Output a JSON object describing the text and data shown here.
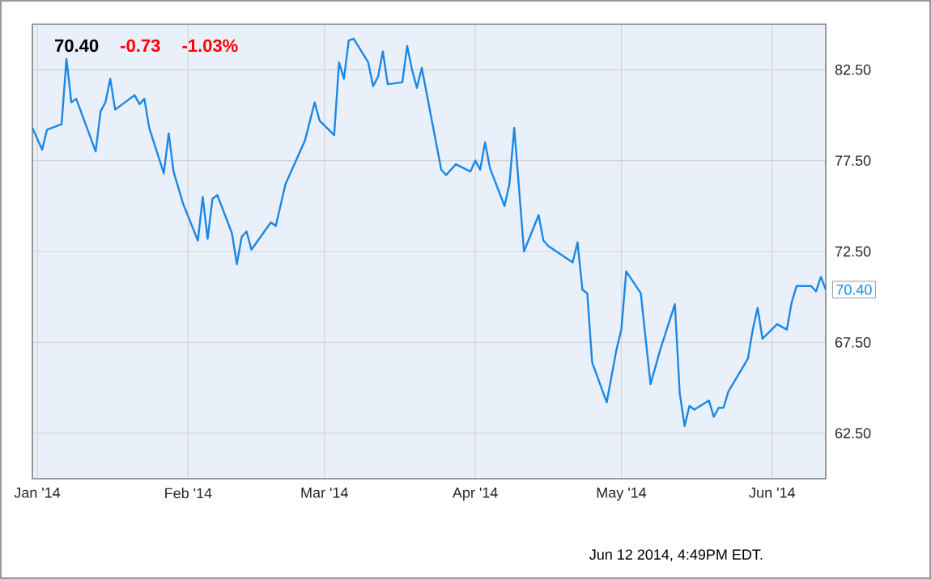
{
  "chart_data": {
    "type": "line",
    "title": "70.40",
    "annotations": [
      "-0.73",
      "-1.03%",
      "Jun 12 2014, 4:49PM EDT.",
      {
        "text": "70.40",
        "x": "2014-06-12",
        "y": 70.4
      }
    ],
    "x": [
      "2013-12-31",
      "2014-01-02",
      "2014-01-03",
      "2014-01-06",
      "2014-01-07",
      "2014-01-08",
      "2014-01-09",
      "2014-01-13",
      "2014-01-14",
      "2014-01-15",
      "2014-01-16",
      "2014-01-17",
      "2014-01-21",
      "2014-01-22",
      "2014-01-23",
      "2014-01-24",
      "2014-01-27",
      "2014-01-28",
      "2014-01-29",
      "2014-01-31",
      "2014-02-03",
      "2014-02-04",
      "2014-02-05",
      "2014-02-06",
      "2014-02-07",
      "2014-02-10",
      "2014-02-11",
      "2014-02-12",
      "2014-02-13",
      "2014-02-14",
      "2014-02-18",
      "2014-02-19",
      "2014-02-21",
      "2014-02-25",
      "2014-02-27",
      "2014-02-28",
      "2014-03-03",
      "2014-03-04",
      "2014-03-05",
      "2014-03-06",
      "2014-03-07",
      "2014-03-10",
      "2014-03-11",
      "2014-03-12",
      "2014-03-13",
      "2014-03-14",
      "2014-03-17",
      "2014-03-18",
      "2014-03-19",
      "2014-03-20",
      "2014-03-21",
      "2014-03-25",
      "2014-03-26",
      "2014-03-28",
      "2014-03-31",
      "2014-04-01",
      "2014-04-02",
      "2014-04-03",
      "2014-04-04",
      "2014-04-07",
      "2014-04-08",
      "2014-04-09",
      "2014-04-11",
      "2014-04-14",
      "2014-04-15",
      "2014-04-16",
      "2014-04-21",
      "2014-04-22",
      "2014-04-23",
      "2014-04-24",
      "2014-04-25",
      "2014-04-28",
      "2014-04-30",
      "2014-05-01",
      "2014-05-02",
      "2014-05-05",
      "2014-05-07",
      "2014-05-09",
      "2014-05-12",
      "2014-05-13",
      "2014-05-14",
      "2014-05-15",
      "2014-05-16",
      "2014-05-19",
      "2014-05-20",
      "2014-05-21",
      "2014-05-22",
      "2014-05-23",
      "2014-05-27",
      "2014-05-28",
      "2014-05-29",
      "2014-05-30",
      "2014-06-02",
      "2014-06-04",
      "2014-06-05",
      "2014-06-06",
      "2014-06-09",
      "2014-06-10",
      "2014-06-11",
      "2014-06-12"
    ],
    "series": [
      {
        "color": "#1a88e6",
        "values": [
          79.3,
          78.1,
          79.2,
          79.5,
          83.1,
          80.7,
          80.9,
          78.0,
          80.2,
          80.7,
          82.0,
          80.3,
          81.1,
          80.6,
          80.9,
          79.3,
          76.8,
          79.0,
          76.9,
          75.1,
          73.1,
          75.5,
          73.2,
          75.4,
          75.6,
          73.5,
          71.8,
          73.3,
          73.6,
          72.6,
          74.1,
          73.9,
          76.2,
          78.6,
          80.7,
          79.7,
          78.9,
          82.9,
          82.0,
          84.1,
          84.2,
          82.9,
          81.6,
          82.1,
          83.5,
          81.7,
          81.8,
          83.8,
          82.5,
          81.5,
          82.6,
          77.0,
          76.7,
          77.3,
          76.9,
          77.5,
          77.0,
          78.5,
          77.1,
          75.0,
          76.2,
          79.3,
          72.5,
          74.5,
          73.1,
          72.8,
          71.9,
          73.0,
          70.4,
          70.2,
          66.4,
          64.2,
          67.1,
          68.2,
          71.4,
          70.2,
          65.2,
          67.1,
          69.6,
          64.7,
          62.9,
          64.0,
          63.8,
          64.3,
          63.4,
          63.9,
          63.9,
          64.8,
          66.6,
          68.2,
          69.4,
          67.7,
          68.5,
          68.2,
          69.7,
          70.6,
          70.6,
          70.3,
          71.1,
          70.4
        ]
      }
    ],
    "xlim": [
      "2013-12-31",
      "2014-06-12"
    ],
    "xticks": [
      {
        "value": "2014-01-01",
        "label": "Jan '14"
      },
      {
        "value": "2014-02-01",
        "label": "Feb '14"
      },
      {
        "value": "2014-03-01",
        "label": "Mar '14"
      },
      {
        "value": "2014-04-01",
        "label": "Apr '14"
      },
      {
        "value": "2014-05-01",
        "label": "May '14"
      },
      {
        "value": "2014-06-01",
        "label": "Jun '14"
      }
    ],
    "ylim": [
      60,
      85
    ],
    "yticks": [
      {
        "value": 62.5,
        "label": "62.50"
      },
      {
        "value": 67.5,
        "label": "67.50"
      },
      {
        "value": 72.5,
        "label": "72.50"
      },
      {
        "value": 77.5,
        "label": "77.50"
      },
      {
        "value": 82.5,
        "label": "82.50"
      }
    ],
    "grid": true,
    "marker": "none",
    "line_style": "solid"
  }
}
